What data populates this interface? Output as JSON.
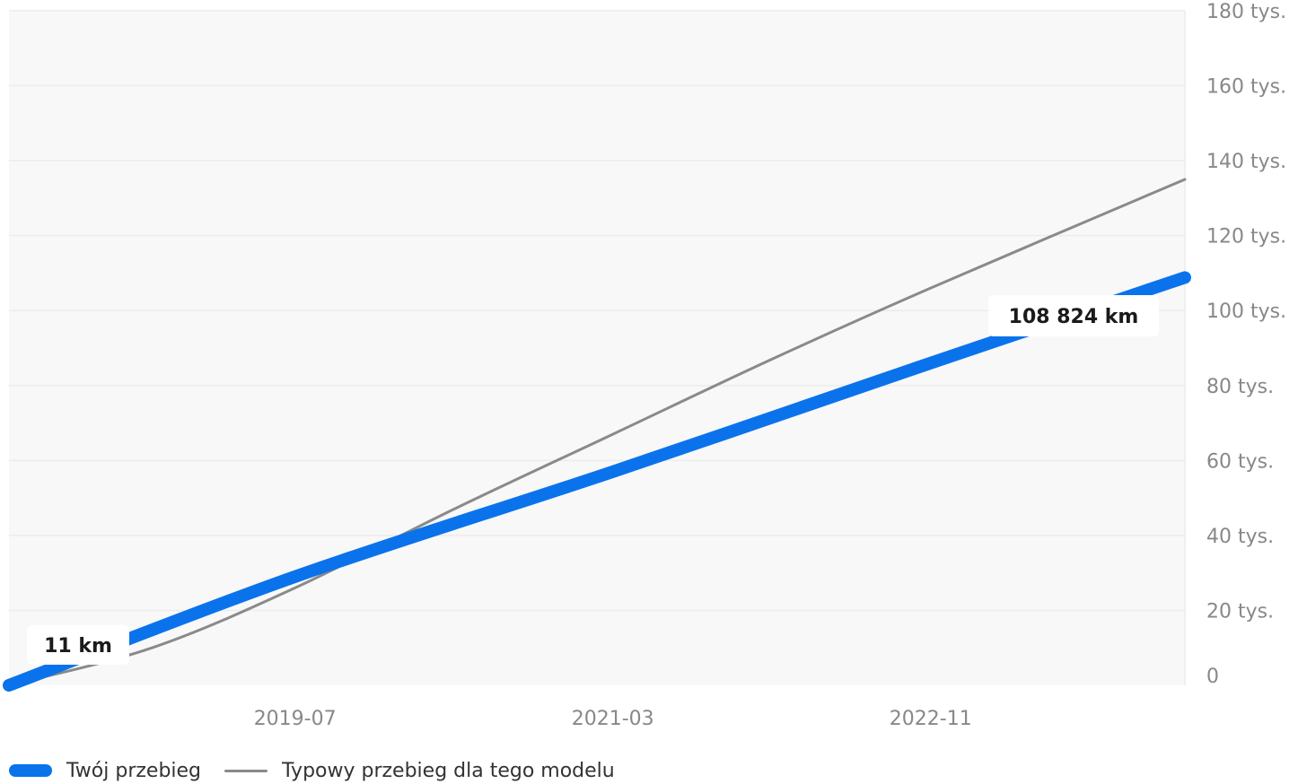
{
  "colors": {
    "primary_series": "#0a73eb",
    "secondary_series": "#8a8a8a",
    "plot_background": "#f8f8f8",
    "grid": "#ececec"
  },
  "chart_data": {
    "type": "line",
    "x_axis": {
      "type": "date",
      "ticks": [
        "2019-07",
        "2021-03",
        "2022-11"
      ]
    },
    "y_axis": {
      "position": "right",
      "ylim": [
        0,
        180000
      ],
      "ticks": [
        0,
        20000,
        40000,
        60000,
        80000,
        100000,
        120000,
        140000,
        160000,
        180000
      ],
      "tick_labels": [
        "0",
        "20 tys.",
        "40 tys.",
        "60 tys.",
        "80 tys.",
        "100 tys.",
        "120 tys.",
        "140 tys.",
        "160 tys.",
        "180 tys."
      ]
    },
    "grid": true,
    "legend_position": "bottom-left",
    "series": [
      {
        "name": "Twój przebieg",
        "points": [
          {
            "x": "2018-01",
            "y": 11
          },
          {
            "x": "2019-07",
            "y": 29000
          },
          {
            "x": "2021-03",
            "y": 57000
          },
          {
            "x": "2022-11",
            "y": 86000
          },
          {
            "x": "2024-03",
            "y": 108824
          }
        ]
      },
      {
        "name": "Typowy przebieg dla tego modelu",
        "points": [
          {
            "x": "2018-01",
            "y": 0
          },
          {
            "x": "2018-10",
            "y": 10000
          },
          {
            "x": "2019-07",
            "y": 26000
          },
          {
            "x": "2020-05",
            "y": 47000
          },
          {
            "x": "2021-03",
            "y": 67000
          },
          {
            "x": "2022-01",
            "y": 87000
          },
          {
            "x": "2022-11",
            "y": 106000
          },
          {
            "x": "2024-03",
            "y": 135000
          }
        ]
      }
    ],
    "annotations": [
      {
        "series": 0,
        "point": 0,
        "text": "11 km"
      },
      {
        "series": 0,
        "point": 4,
        "text": "108 824 km"
      }
    ]
  }
}
